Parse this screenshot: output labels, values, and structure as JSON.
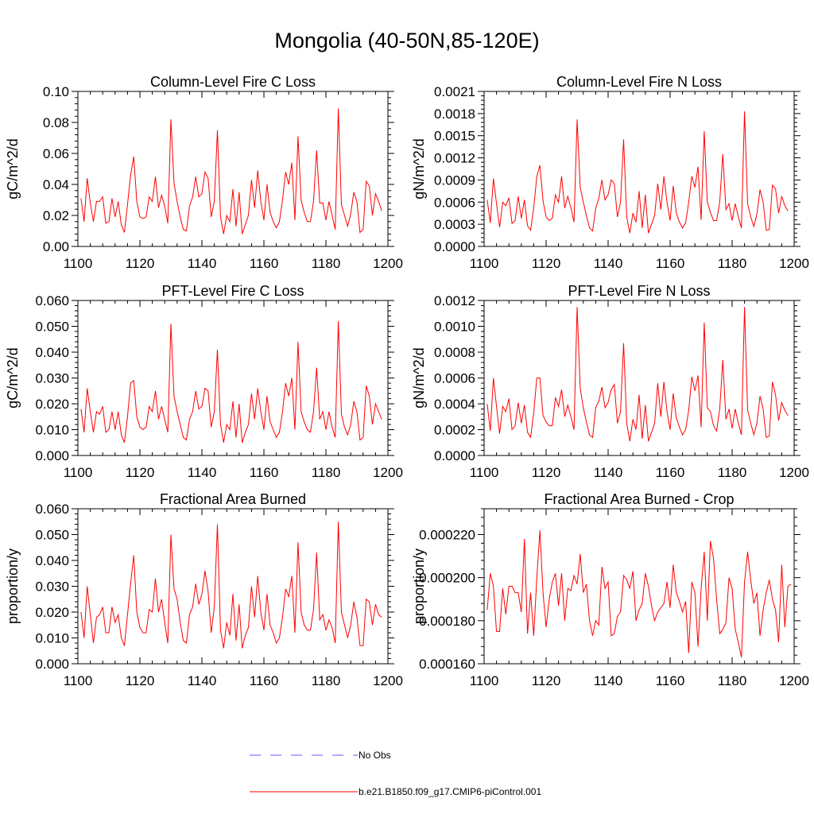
{
  "title": "Mongolia (40-50N,85-120E)",
  "legend": {
    "obs_label": "No Obs",
    "obs_color": "#5b5bff",
    "model_label": "b.e21.B1850.f09_g17.CMIP6-piControl.001",
    "model_color": "#ff0000"
  },
  "chart_data": [
    {
      "type": "line",
      "title": "Column-Level Fire C Loss",
      "xlabel": "",
      "ylabel": "gC/m^2/d",
      "xlim": [
        1100,
        1200
      ],
      "ylim": [
        0,
        0.1
      ],
      "xticks": [
        "1100",
        "1120",
        "1140",
        "1160",
        "1180",
        "1200"
      ],
      "yticks": [
        "0.00",
        "0.02",
        "0.04",
        "0.06",
        "0.08",
        "0.10"
      ],
      "x_start": 1101,
      "series": [
        {
          "name": "b.e21.B1850.f09_g17.CMIP6-piControl.001",
          "values": [
            0.031,
            0.016,
            0.044,
            0.028,
            0.016,
            0.029,
            0.029,
            0.032,
            0.015,
            0.016,
            0.031,
            0.019,
            0.029,
            0.014,
            0.009,
            0.027,
            0.046,
            0.058,
            0.029,
            0.019,
            0.018,
            0.019,
            0.032,
            0.029,
            0.045,
            0.025,
            0.033,
            0.026,
            0.015,
            0.082,
            0.041,
            0.029,
            0.019,
            0.011,
            0.01,
            0.026,
            0.032,
            0.045,
            0.032,
            0.034,
            0.048,
            0.044,
            0.019,
            0.029,
            0.075,
            0.019,
            0.008,
            0.02,
            0.016,
            0.037,
            0.013,
            0.035,
            0.008,
            0.014,
            0.02,
            0.043,
            0.025,
            0.049,
            0.029,
            0.017,
            0.04,
            0.022,
            0.016,
            0.012,
            0.016,
            0.03,
            0.048,
            0.04,
            0.054,
            0.017,
            0.071,
            0.03,
            0.022,
            0.016,
            0.016,
            0.029,
            0.062,
            0.028,
            0.028,
            0.017,
            0.029,
            0.02,
            0.011,
            0.089,
            0.027,
            0.02,
            0.013,
            0.021,
            0.035,
            0.029,
            0.009,
            0.011,
            0.042,
            0.039,
            0.02,
            0.034,
            0.029,
            0.023
          ]
        }
      ]
    },
    {
      "type": "line",
      "title": "Column-Level Fire N Loss",
      "xlabel": "",
      "ylabel": "gN/m^2/d",
      "xlim": [
        1100,
        1200
      ],
      "ylim": [
        0,
        0.0021
      ],
      "xticks": [
        "1100",
        "1120",
        "1140",
        "1160",
        "1180",
        "1200"
      ],
      "yticks": [
        "0.0000",
        "0.0003",
        "0.0006",
        "0.0009",
        "0.0012",
        "0.0015",
        "0.0018",
        "0.0021"
      ],
      "x_start": 1101,
      "series": [
        {
          "name": "b.e21.B1850.f09_g17.CMIP6-piControl.001",
          "values": [
            0.00063,
            0.00032,
            0.00092,
            0.00058,
            0.00026,
            0.0006,
            0.00055,
            0.00066,
            0.00031,
            0.00035,
            0.00068,
            0.00038,
            0.00063,
            0.00028,
            0.00022,
            0.00052,
            0.00095,
            0.0011,
            0.00062,
            0.0004,
            0.00035,
            0.00038,
            0.0007,
            0.0006,
            0.00095,
            0.00052,
            0.00068,
            0.00052,
            0.00033,
            0.00172,
            0.0008,
            0.0006,
            0.00042,
            0.00025,
            0.00021,
            0.00052,
            0.00065,
            0.0009,
            0.00063,
            0.0007,
            0.0009,
            0.00085,
            0.0004,
            0.0006,
            0.00145,
            0.0004,
            0.00018,
            0.00045,
            0.00033,
            0.00075,
            0.00025,
            0.0007,
            0.00018,
            0.0003,
            0.00042,
            0.00085,
            0.0005,
            0.00095,
            0.0006,
            0.00035,
            0.00082,
            0.00045,
            0.00033,
            0.00025,
            0.00032,
            0.0006,
            0.00095,
            0.0008,
            0.00108,
            0.00036,
            0.00156,
            0.0006,
            0.00046,
            0.00035,
            0.00035,
            0.0006,
            0.00125,
            0.0005,
            0.00058,
            0.00035,
            0.00058,
            0.0004,
            0.00025,
            0.00183,
            0.00058,
            0.0004,
            0.00027,
            0.00044,
            0.00077,
            0.0006,
            0.00022,
            0.00023,
            0.00083,
            0.00078,
            0.00045,
            0.00068,
            0.00055,
            0.00048
          ]
        }
      ]
    },
    {
      "type": "line",
      "title": "PFT-Level Fire C Loss",
      "xlabel": "",
      "ylabel": "gC/m^2/d",
      "xlim": [
        1100,
        1200
      ],
      "ylim": [
        0,
        0.06
      ],
      "xticks": [
        "1100",
        "1120",
        "1140",
        "1160",
        "1180",
        "1200"
      ],
      "yticks": [
        "0.000",
        "0.010",
        "0.020",
        "0.030",
        "0.040",
        "0.050",
        "0.060"
      ],
      "x_start": 1101,
      "series": [
        {
          "name": "b.e21.B1850.f09_g17.CMIP6-piControl.001",
          "values": [
            0.018,
            0.009,
            0.026,
            0.017,
            0.009,
            0.017,
            0.016,
            0.019,
            0.009,
            0.01,
            0.017,
            0.01,
            0.017,
            0.008,
            0.005,
            0.015,
            0.028,
            0.029,
            0.015,
            0.011,
            0.01,
            0.011,
            0.019,
            0.017,
            0.025,
            0.014,
            0.019,
            0.014,
            0.009,
            0.051,
            0.023,
            0.017,
            0.012,
            0.007,
            0.006,
            0.014,
            0.017,
            0.025,
            0.018,
            0.019,
            0.026,
            0.025,
            0.011,
            0.017,
            0.041,
            0.012,
            0.005,
            0.012,
            0.01,
            0.021,
            0.007,
            0.02,
            0.005,
            0.009,
            0.012,
            0.024,
            0.014,
            0.026,
            0.017,
            0.01,
            0.023,
            0.013,
            0.01,
            0.007,
            0.009,
            0.017,
            0.028,
            0.023,
            0.03,
            0.01,
            0.044,
            0.017,
            0.013,
            0.01,
            0.009,
            0.017,
            0.034,
            0.014,
            0.017,
            0.01,
            0.017,
            0.011,
            0.007,
            0.052,
            0.016,
            0.011,
            0.008,
            0.012,
            0.021,
            0.017,
            0.006,
            0.007,
            0.027,
            0.023,
            0.012,
            0.02,
            0.017,
            0.014
          ]
        }
      ]
    },
    {
      "type": "line",
      "title": "PFT-Level Fire N Loss",
      "xlabel": "",
      "ylabel": "gN/m^2/d",
      "xlim": [
        1100,
        1200
      ],
      "ylim": [
        0,
        0.0012
      ],
      "xticks": [
        "1100",
        "1120",
        "1140",
        "1160",
        "1180",
        "1200"
      ],
      "yticks": [
        "0.0000",
        "0.0002",
        "0.0004",
        "0.0006",
        "0.0008",
        "0.0010",
        "0.0012"
      ],
      "x_start": 1101,
      "series": [
        {
          "name": "b.e21.B1850.f09_g17.CMIP6-piControl.001",
          "values": [
            0.0004,
            0.00019,
            0.0006,
            0.00038,
            0.00017,
            0.00038,
            0.00034,
            0.00044,
            0.0002,
            0.00023,
            0.00041,
            0.00025,
            0.00039,
            0.00018,
            0.00014,
            0.00033,
            0.0006,
            0.0006,
            0.00031,
            0.00026,
            0.00023,
            0.00023,
            0.00045,
            0.00038,
            0.00051,
            0.0003,
            0.00039,
            0.0003,
            0.0002,
            0.00115,
            0.00052,
            0.00037,
            0.00026,
            0.00016,
            0.00014,
            0.00037,
            0.00042,
            0.00053,
            0.00037,
            0.00041,
            0.00051,
            0.00055,
            0.00025,
            0.00034,
            0.00087,
            0.00025,
            0.00011,
            0.00028,
            0.0002,
            0.00047,
            0.00013,
            0.00039,
            0.00011,
            0.00018,
            0.00025,
            0.00056,
            0.0003,
            0.00057,
            0.00034,
            0.0002,
            0.00048,
            0.00029,
            0.00022,
            0.00016,
            0.0002,
            0.00035,
            0.00061,
            0.0005,
            0.00062,
            0.00022,
            0.00103,
            0.00037,
            0.00034,
            0.00023,
            0.00019,
            0.00036,
            0.00074,
            0.00028,
            0.00036,
            0.00021,
            0.00036,
            0.00025,
            0.00016,
            0.00115,
            0.00035,
            0.00025,
            0.00016,
            0.00025,
            0.00046,
            0.00036,
            0.00014,
            0.00015,
            0.00057,
            0.00047,
            0.00027,
            0.00041,
            0.00035,
            0.00031
          ]
        }
      ]
    },
    {
      "type": "line",
      "title": "Fractional Area Burned",
      "xlabel": "",
      "ylabel": "proportion/y",
      "xlim": [
        1100,
        1200
      ],
      "ylim": [
        0,
        0.06
      ],
      "xticks": [
        "1100",
        "1120",
        "1140",
        "1160",
        "1180",
        "1200"
      ],
      "yticks": [
        "0.000",
        "0.010",
        "0.020",
        "0.030",
        "0.040",
        "0.050",
        "0.060"
      ],
      "x_start": 1101,
      "series": [
        {
          "name": "b.e21.B1850.f09_g17.CMIP6-piControl.001",
          "values": [
            0.02,
            0.01,
            0.03,
            0.019,
            0.008,
            0.018,
            0.019,
            0.022,
            0.012,
            0.012,
            0.022,
            0.016,
            0.019,
            0.01,
            0.007,
            0.019,
            0.031,
            0.042,
            0.02,
            0.014,
            0.012,
            0.012,
            0.021,
            0.02,
            0.033,
            0.02,
            0.025,
            0.016,
            0.008,
            0.05,
            0.029,
            0.025,
            0.016,
            0.009,
            0.008,
            0.019,
            0.022,
            0.031,
            0.023,
            0.027,
            0.036,
            0.028,
            0.012,
            0.022,
            0.054,
            0.013,
            0.006,
            0.016,
            0.011,
            0.027,
            0.009,
            0.023,
            0.006,
            0.011,
            0.014,
            0.03,
            0.018,
            0.034,
            0.02,
            0.013,
            0.027,
            0.015,
            0.012,
            0.008,
            0.01,
            0.018,
            0.029,
            0.026,
            0.034,
            0.012,
            0.047,
            0.02,
            0.015,
            0.013,
            0.013,
            0.021,
            0.043,
            0.017,
            0.019,
            0.013,
            0.017,
            0.014,
            0.008,
            0.055,
            0.02,
            0.015,
            0.01,
            0.015,
            0.024,
            0.018,
            0.007,
            0.007,
            0.025,
            0.024,
            0.015,
            0.023,
            0.019,
            0.018
          ]
        }
      ]
    },
    {
      "type": "line",
      "title": "Fractional Area Burned - Crop",
      "xlabel": "",
      "ylabel": "proportion/y",
      "xlim": [
        1100,
        1200
      ],
      "ylim": [
        0.00016,
        0.000232
      ],
      "xticks": [
        "1100",
        "1120",
        "1140",
        "1160",
        "1180",
        "1200"
      ],
      "yticks": [
        "0.000160",
        "0.000180",
        "0.000200",
        "0.000220"
      ],
      "ytick_values": [
        0.00016,
        0.00018,
        0.0002,
        0.00022
      ],
      "x_start": 1101,
      "series": [
        {
          "name": "b.e21.B1850.f09_g17.CMIP6-piControl.001",
          "values": [
            0.000185,
            0.000202,
            0.000196,
            0.000175,
            0.000175,
            0.000195,
            0.000183,
            0.000196,
            0.000196,
            0.000193,
            0.000193,
            0.000184,
            0.000218,
            0.000174,
            0.000193,
            0.000173,
            0.0002,
            0.000222,
            0.000193,
            0.000177,
            0.00019,
            0.000198,
            0.000202,
            0.000187,
            0.000202,
            0.00018,
            0.000195,
            0.000194,
            0.000201,
            0.000197,
            0.000211,
            0.000193,
            0.000197,
            0.00018,
            0.000173,
            0.00018,
            0.000178,
            0.000205,
            0.000195,
            0.000198,
            0.000173,
            0.000174,
            0.000182,
            0.000184,
            0.000201,
            0.000199,
            0.000195,
            0.000203,
            0.00018,
            0.000185,
            0.000188,
            0.000202,
            0.000196,
            0.000187,
            0.00018,
            0.000184,
            0.000186,
            0.000188,
            0.000198,
            0.000186,
            0.000206,
            0.000193,
            0.000189,
            0.000184,
            0.000189,
            0.000165,
            0.000198,
            0.000193,
            0.000168,
            0.000195,
            0.000212,
            0.00018,
            0.000217,
            0.000209,
            0.00019,
            0.000174,
            0.000176,
            0.000179,
            0.0002,
            0.000195,
            0.000176,
            0.00017,
            0.000163,
            0.000198,
            0.000212,
            0.000199,
            0.000188,
            0.000193,
            0.000173,
            0.000185,
            0.000193,
            0.000199,
            0.00019,
            0.000185,
            0.00017,
            0.000206,
            0.000177,
            0.000196,
            0.000197
          ]
        }
      ]
    }
  ]
}
